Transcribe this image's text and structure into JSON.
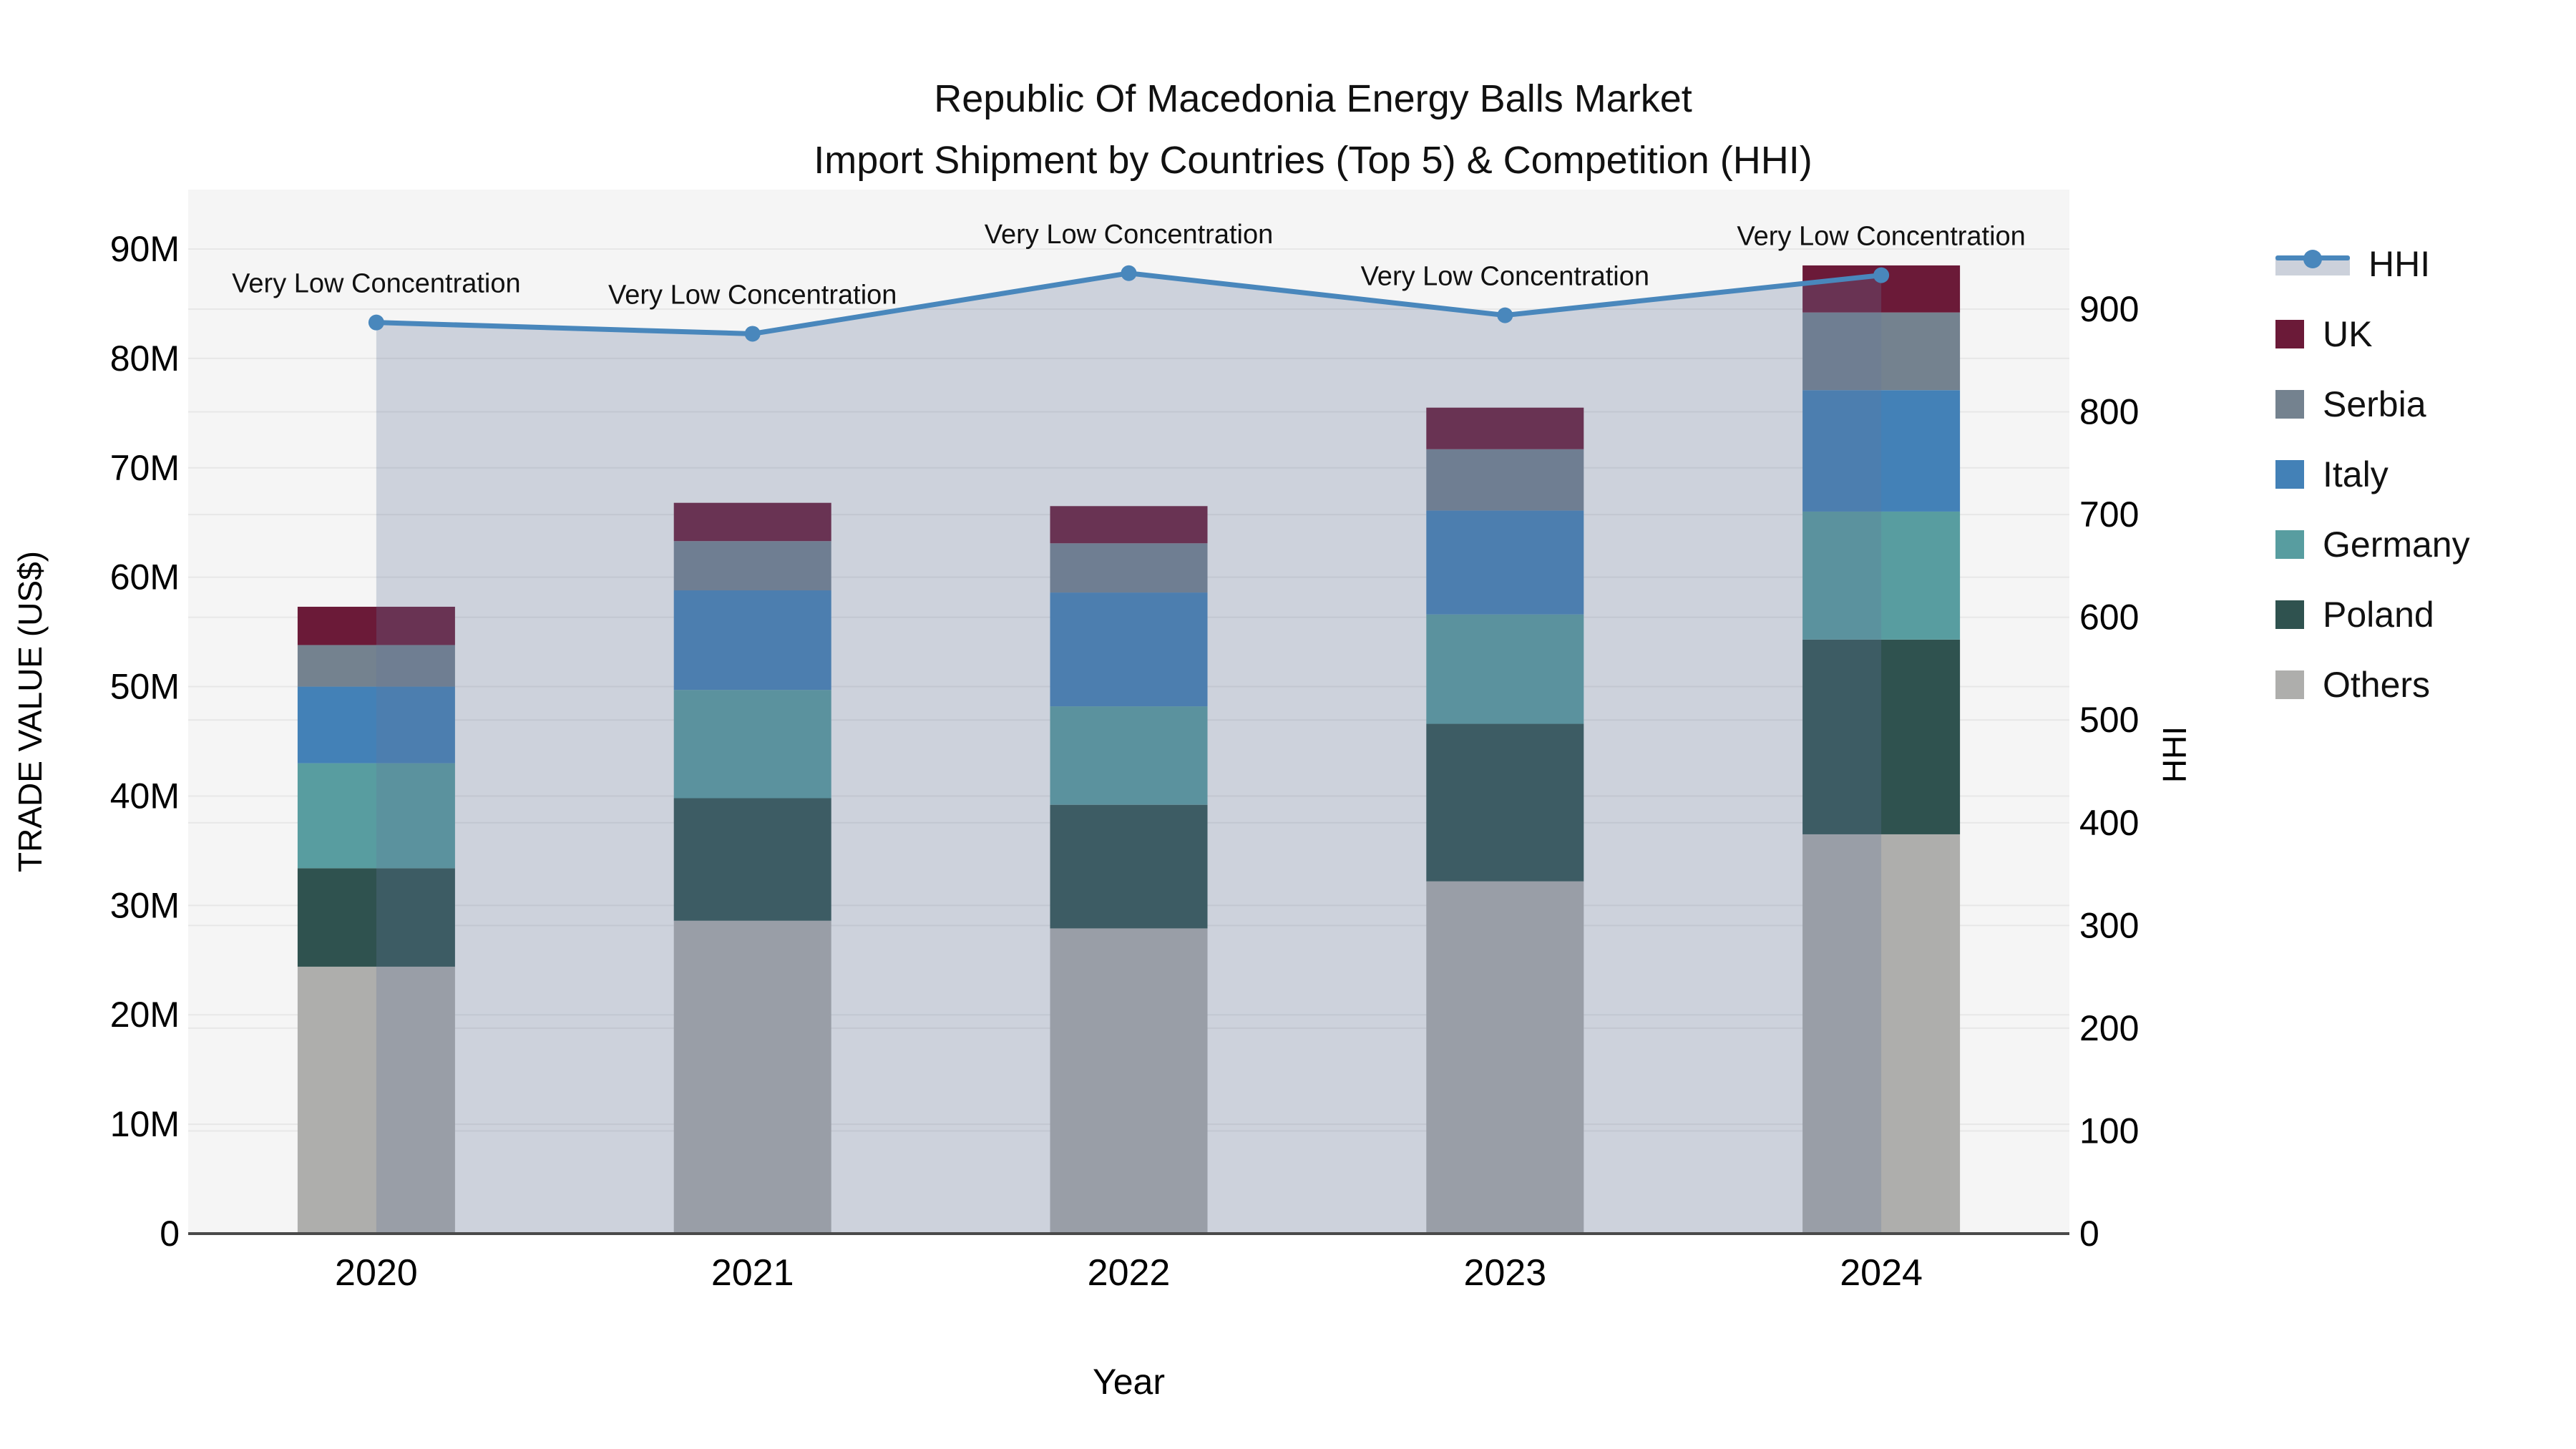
{
  "title": {
    "line1": "Republic Of Macedonia Energy Balls Market",
    "line2": "Import Shipment by Countries (Top 5) & Competition (HHI)"
  },
  "chart_data": {
    "type": "bar",
    "subtype": "stacked-bar-with-line-overlay",
    "categories": [
      "2020",
      "2021",
      "2022",
      "2023",
      "2024"
    ],
    "series": [
      {
        "name": "UK",
        "color": "#6b1a38",
        "values": [
          3.5,
          3.5,
          3.4,
          3.8,
          4.3
        ]
      },
      {
        "name": "Serbia",
        "color": "#74828f",
        "values": [
          3.8,
          4.5,
          4.5,
          5.6,
          7.1
        ]
      },
      {
        "name": "Italy",
        "color": "#4381b7",
        "values": [
          7.0,
          9.1,
          10.4,
          9.5,
          11.1
        ]
      },
      {
        "name": "Germany",
        "color": "#589da0",
        "values": [
          9.6,
          9.9,
          9.0,
          10.0,
          11.7
        ]
      },
      {
        "name": "Poland",
        "color": "#2f524f",
        "values": [
          9.0,
          11.2,
          11.3,
          14.4,
          17.8
        ]
      },
      {
        "name": "Others",
        "color": "#aeaeac",
        "values": [
          24.4,
          28.6,
          27.9,
          32.2,
          36.5
        ]
      }
    ],
    "bar_totals_musd": [
      57.3,
      66.8,
      66.5,
      75.5,
      88.5
    ],
    "line_series": {
      "name": "HHI",
      "color": "#4987bc",
      "fill_color": "rgba(102,120,155,0.28)",
      "values": [
        887,
        876,
        935,
        894,
        933
      ]
    },
    "annotations": [
      {
        "x": "2020",
        "text": "Very Low Concentration"
      },
      {
        "x": "2021",
        "text": "Very Low Concentration"
      },
      {
        "x": "2022",
        "text": "Very Low Concentration"
      },
      {
        "x": "2023",
        "text": "Very Low Concentration"
      },
      {
        "x": "2024",
        "text": "Very Low Concentration"
      }
    ],
    "axes": {
      "x": {
        "label": "Year"
      },
      "left": {
        "label": "TRADE VALUE (US$)",
        "unit": "M",
        "min": 0,
        "max": 90,
        "tick_step": 10,
        "tick_labels": [
          "0",
          "10M",
          "20M",
          "30M",
          "40M",
          "50M",
          "60M",
          "70M",
          "80M",
          "90M"
        ]
      },
      "right": {
        "label": "HHI",
        "min": 0,
        "max": 900,
        "tick_step": 100,
        "tick_labels": [
          "0",
          "100",
          "200",
          "300",
          "400",
          "500",
          "600",
          "700",
          "800",
          "900"
        ]
      }
    },
    "legend": {
      "position": "right",
      "entries": [
        "HHI",
        "UK",
        "Serbia",
        "Italy",
        "Germany",
        "Poland",
        "Others"
      ]
    },
    "style": {
      "plot_bg": "#f5f5f5",
      "grid_color": "#e7e7e7",
      "axis_line_color": "#4a4a4a",
      "text_color": "#111111"
    }
  }
}
